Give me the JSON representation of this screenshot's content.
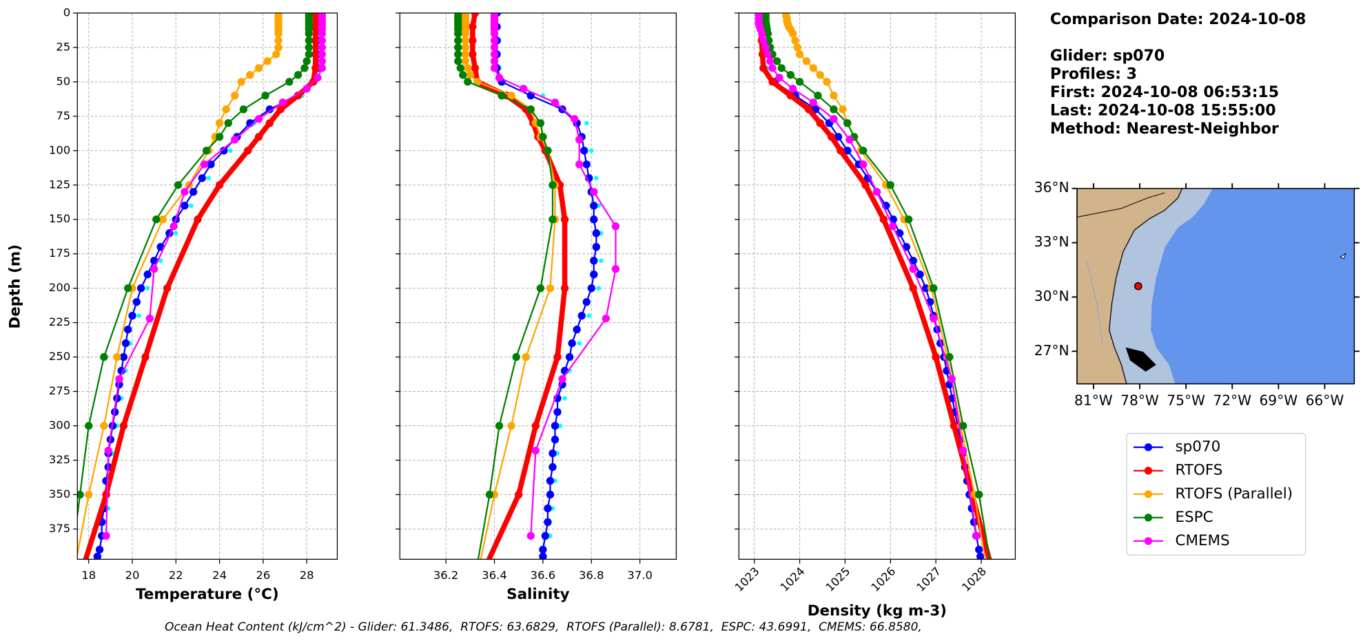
{
  "chart_data": [
    {
      "type": "line",
      "xlabel": "Temperature (°C)",
      "ylabel": "Depth (m)",
      "grid": true,
      "xlim": [
        17.48,
        29.4
      ],
      "xticks": [
        18,
        20,
        22,
        24,
        26,
        28
      ],
      "ylim": [
        397,
        0
      ],
      "yticks": [
        0,
        25,
        50,
        75,
        100,
        125,
        150,
        175,
        200,
        225,
        250,
        275,
        300,
        325,
        350,
        375
      ],
      "series": [
        {
          "color": "#00ffff",
          "marker": "dot",
          "y": [
            0,
            20,
            40,
            60,
            80,
            100,
            120,
            140,
            160,
            180,
            200,
            220,
            240,
            260,
            280,
            300,
            320,
            340,
            360,
            380
          ],
          "values": [
            28.7,
            28.7,
            28.7,
            27.8,
            25.6,
            24.5,
            23.5,
            22.7,
            22.0,
            21.3,
            20.7,
            20.3,
            19.9,
            19.7,
            19.5,
            19.3,
            19.1,
            19.0,
            18.9,
            18.8
          ]
        },
        {
          "name": "sp070",
          "color": "#0000ff",
          "marker": "o",
          "linewidth": 1.8,
          "y": [
            0,
            10,
            20,
            30,
            40,
            50,
            60,
            70,
            80,
            90,
            100,
            110,
            120,
            130,
            140,
            150,
            160,
            170,
            180,
            190,
            200,
            210,
            220,
            230,
            240,
            250,
            260,
            270,
            280,
            290,
            300,
            310,
            320,
            330,
            340,
            350,
            360,
            370,
            380,
            390,
            395
          ],
          "values": [
            28.5,
            28.5,
            28.5,
            28.5,
            28.5,
            28.3,
            27.6,
            26.3,
            25.4,
            24.8,
            24.2,
            23.6,
            23.2,
            22.8,
            22.4,
            22.0,
            21.7,
            21.3,
            21.0,
            20.7,
            20.4,
            20.2,
            20.0,
            19.8,
            19.7,
            19.6,
            19.5,
            19.4,
            19.3,
            19.2,
            19.1,
            19.0,
            18.9,
            18.9,
            18.8,
            18.8,
            18.7,
            18.6,
            18.6,
            18.5,
            18.4
          ]
        },
        {
          "name": "RTOFS",
          "color": "#ff0000",
          "marker": "o",
          "linewidth": 6,
          "y": [
            0,
            10,
            20,
            30,
            40,
            50,
            60,
            70,
            80,
            90,
            100,
            125,
            150,
            200,
            250,
            300,
            350,
            400
          ],
          "values": [
            28.4,
            28.4,
            28.4,
            28.4,
            28.4,
            28.3,
            27.6,
            26.8,
            26.3,
            25.8,
            25.3,
            24.0,
            23.0,
            21.6,
            20.6,
            19.6,
            18.8,
            17.8
          ]
        },
        {
          "name": "RTOFS (Parallel)",
          "color": "#ffa500",
          "marker": "o",
          "linewidth": 1.8,
          "y": [
            0,
            2,
            4,
            6,
            8,
            10,
            12,
            15,
            20,
            25,
            30,
            35,
            40,
            45,
            50,
            60,
            70,
            80,
            90,
            100,
            125,
            150,
            200,
            250,
            300,
            350,
            400
          ],
          "values": [
            26.7,
            26.7,
            26.7,
            26.7,
            26.7,
            26.7,
            26.7,
            26.7,
            26.7,
            26.7,
            26.6,
            26.2,
            25.8,
            25.4,
            25.0,
            24.7,
            24.3,
            24.0,
            23.8,
            23.5,
            22.6,
            21.4,
            20.0,
            19.3,
            18.7,
            18.0,
            17.4
          ]
        },
        {
          "name": "ESPC",
          "color": "#008000",
          "marker": "o",
          "linewidth": 1.8,
          "y": [
            0,
            2,
            4,
            6,
            8,
            10,
            12,
            15,
            20,
            25,
            30,
            35,
            40,
            45,
            50,
            60,
            70,
            80,
            90,
            100,
            125,
            150,
            200,
            250,
            300,
            350,
            400
          ],
          "values": [
            28.1,
            28.1,
            28.1,
            28.1,
            28.1,
            28.1,
            28.1,
            28.1,
            28.1,
            28.1,
            28.1,
            28.0,
            27.9,
            27.6,
            27.2,
            26.1,
            25.1,
            24.4,
            24.0,
            23.4,
            22.1,
            21.1,
            19.8,
            18.7,
            18.0,
            17.6,
            17.2
          ]
        },
        {
          "name": "CMEMS",
          "color": "#ff00ff",
          "marker": "o",
          "linewidth": 1.8,
          "y": [
            0,
            2,
            4,
            6,
            8,
            10,
            12,
            15,
            20,
            25,
            30,
            35,
            40,
            47,
            55,
            65,
            77,
            92,
            110,
            130,
            155,
            186,
            222,
            266,
            318,
            380
          ],
          "values": [
            28.7,
            28.7,
            28.7,
            28.7,
            28.7,
            28.7,
            28.7,
            28.7,
            28.7,
            28.7,
            28.7,
            28.7,
            28.7,
            28.5,
            28.0,
            26.9,
            25.8,
            24.7,
            23.3,
            22.4,
            21.9,
            21.0,
            20.8,
            19.4,
            18.9,
            18.8
          ]
        }
      ]
    },
    {
      "type": "line",
      "xlabel": "Salinity",
      "grid": true,
      "xlim": [
        36.01,
        37.15
      ],
      "xticks": [
        36.2,
        36.4,
        36.6,
        36.8,
        {
          "value": 37,
          "label": "37.0"
        }
      ],
      "series": [
        {
          "values": [
            36.42,
            36.42,
            36.42,
            36.6,
            36.78,
            36.8,
            36.82,
            36.83,
            36.84,
            36.84,
            36.83,
            36.79,
            36.75,
            36.71,
            36.69,
            36.67,
            36.66,
            36.65,
            36.64,
            36.63
          ]
        },
        {
          "values": [
            36.41,
            36.41,
            36.41,
            36.41,
            36.41,
            36.43,
            36.55,
            36.68,
            36.74,
            36.76,
            36.77,
            36.78,
            36.79,
            36.8,
            36.81,
            36.81,
            36.82,
            36.82,
            36.81,
            36.81,
            36.8,
            36.78,
            36.76,
            36.74,
            36.72,
            36.71,
            36.69,
            36.68,
            36.66,
            36.66,
            36.65,
            36.65,
            36.64,
            36.64,
            36.63,
            36.63,
            36.62,
            36.62,
            36.61,
            36.6,
            36.6
          ]
        },
        {
          "values": [
            36.32,
            36.31,
            36.31,
            36.31,
            36.32,
            36.33,
            36.45,
            36.53,
            36.56,
            36.58,
            36.61,
            36.67,
            36.69,
            36.69,
            36.66,
            36.57,
            36.5,
            36.37
          ]
        },
        {
          "values": [
            36.28,
            36.28,
            36.28,
            36.28,
            36.28,
            36.28,
            36.28,
            36.28,
            36.28,
            36.28,
            36.28,
            36.28,
            36.29,
            36.3,
            36.33,
            36.47,
            36.55,
            36.57,
            36.59,
            36.62,
            36.65,
            36.65,
            36.63,
            36.53,
            36.47,
            36.4,
            36.34
          ]
        },
        {
          "values": [
            36.25,
            36.25,
            36.25,
            36.25,
            36.25,
            36.25,
            36.25,
            36.25,
            36.25,
            36.25,
            36.25,
            36.25,
            36.26,
            36.27,
            36.29,
            36.43,
            36.55,
            36.59,
            36.6,
            36.62,
            36.64,
            36.64,
            36.59,
            36.49,
            36.42,
            36.38,
            36.33
          ]
        },
        {
          "values": [
            36.4,
            36.4,
            36.4,
            36.4,
            36.4,
            36.4,
            36.4,
            36.4,
            36.4,
            36.4,
            36.4,
            36.4,
            36.4,
            36.42,
            36.52,
            36.65,
            36.73,
            36.75,
            36.75,
            36.81,
            36.9,
            36.9,
            36.86,
            36.68,
            36.57,
            36.55
          ]
        }
      ]
    },
    {
      "type": "line",
      "xlabel": "Density (kg m-3)",
      "grid": true,
      "xtick_rotation": 45,
      "xlim": [
        1022.66,
        1028.75
      ],
      "xticks": [
        1023,
        1024,
        1025,
        1026,
        1027,
        1028
      ],
      "series": [
        {
          "values": [
            1023.2,
            1023.2,
            1023.3,
            1023.95,
            1024.7,
            1025.1,
            1025.55,
            1025.95,
            1026.25,
            1026.55,
            1026.82,
            1027.0,
            1027.14,
            1027.27,
            1027.4,
            1027.52,
            1027.63,
            1027.73,
            1027.83,
            1027.93
          ]
        },
        {
          "values": [
            1023.2,
            1023.2,
            1023.2,
            1023.2,
            1023.2,
            1023.45,
            1023.9,
            1024.35,
            1024.65,
            1024.85,
            1025.05,
            1025.3,
            1025.5,
            1025.7,
            1025.9,
            1026.06,
            1026.2,
            1026.35,
            1026.5,
            1026.65,
            1026.78,
            1026.87,
            1026.95,
            1027.03,
            1027.1,
            1027.18,
            1027.24,
            1027.3,
            1027.36,
            1027.42,
            1027.48,
            1027.54,
            1027.59,
            1027.64,
            1027.69,
            1027.74,
            1027.79,
            1027.84,
            1027.89,
            1027.95,
            1027.98
          ]
        },
        {
          "values": [
            1023.15,
            1023.15,
            1023.16,
            1023.18,
            1023.2,
            1023.4,
            1023.8,
            1024.2,
            1024.45,
            1024.7,
            1024.9,
            1025.45,
            1025.85,
            1026.5,
            1027.0,
            1027.4,
            1027.8,
            1028.2
          ]
        },
        {
          "values": [
            1023.7,
            1023.7,
            1023.72,
            1023.72,
            1023.74,
            1023.76,
            1023.8,
            1023.85,
            1023.9,
            1023.95,
            1024.0,
            1024.15,
            1024.3,
            1024.45,
            1024.6,
            1024.75,
            1024.95,
            1025.05,
            1025.2,
            1025.35,
            1025.9,
            1026.3,
            1026.9,
            1027.25,
            1027.55,
            1027.85,
            1028.1
          ]
        },
        {
          "values": [
            1023.25,
            1023.25,
            1023.25,
            1023.25,
            1023.26,
            1023.27,
            1023.28,
            1023.3,
            1023.32,
            1023.35,
            1023.4,
            1023.5,
            1023.6,
            1023.8,
            1024.0,
            1024.4,
            1024.75,
            1025.05,
            1025.2,
            1025.4,
            1026.0,
            1026.4,
            1026.95,
            1027.3,
            1027.6,
            1027.95,
            1028.2
          ]
        },
        {
          "values": [
            1023.1,
            1023.1,
            1023.1,
            1023.1,
            1023.1,
            1023.12,
            1023.14,
            1023.17,
            1023.2,
            1023.25,
            1023.3,
            1023.35,
            1023.4,
            1023.55,
            1023.85,
            1024.3,
            1024.75,
            1025.1,
            1025.4,
            1025.7,
            1026.05,
            1026.5,
            1026.95,
            1027.35,
            1027.6,
            1027.9
          ]
        }
      ]
    }
  ],
  "info": [
    "Comparison Date: 2024-10-08",
    "Glider: sp070",
    "Profiles: 3",
    "First: 2024-10-08 06:53:15",
    "Last: 2024-10-08 15:55:00",
    "Method: Nearest-Neighbor"
  ],
  "map": {
    "lonlim": [
      -82.07,
      -64.08
    ],
    "latlim": [
      25.2,
      36
    ],
    "lat_ticks": [
      {
        "value": 36,
        "label": "36°N"
      },
      {
        "value": 33,
        "label": "33°N"
      },
      {
        "value": 30,
        "label": "30°N"
      },
      {
        "value": 27,
        "label": "27°N"
      }
    ],
    "lon_ticks": [
      {
        "value": -81,
        "label": "81°W"
      },
      {
        "value": -78,
        "label": "78°W"
      },
      {
        "value": -75,
        "label": "75°W"
      },
      {
        "value": -72,
        "label": "72°W"
      },
      {
        "value": -69,
        "label": "69°W"
      },
      {
        "value": -66,
        "label": "66°W"
      }
    ],
    "glider": {
      "lon": -78.1,
      "lat": 30.6,
      "color": "#ff0000"
    }
  },
  "footnote": "Ocean Heat Content (kJ/cm^2) - Glider: 61.3486,  RTOFS: 63.6829,  RTOFS (Parallel): 8.6781,  ESPC: 43.6991,  CMEMS: 66.8580,"
}
